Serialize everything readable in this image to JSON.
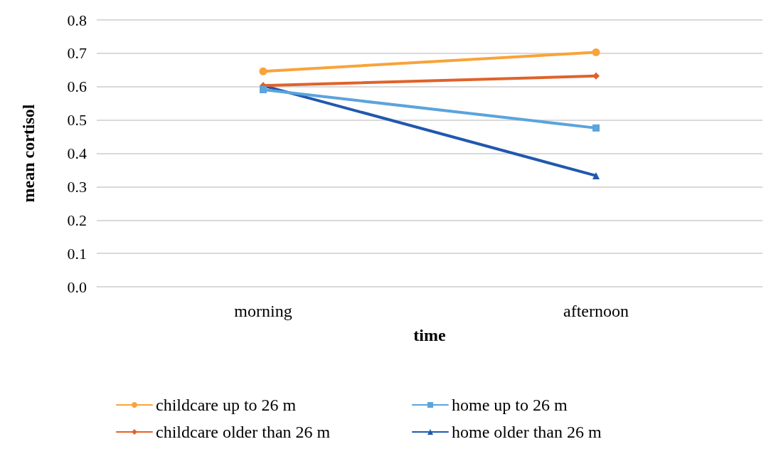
{
  "chart_data": {
    "type": "line",
    "xlabel": "time",
    "ylabel": "mean cortisol",
    "categories": [
      "morning",
      "afternoon"
    ],
    "ylim": [
      0,
      0.8
    ],
    "yticks": [
      {
        "value": 0,
        "label": "0.0"
      },
      0.1,
      0.2,
      0.3,
      0.4,
      0.5,
      0.6,
      0.7,
      0.8
    ],
    "grid": "y",
    "legend": "bottom",
    "series": [
      {
        "name": "childcare up to 26 m",
        "color": "#f9a33a",
        "marker": "circle",
        "values": [
          0.646,
          0.703
        ]
      },
      {
        "name": "home up to 26 m",
        "color": "#5ba4dc",
        "marker": "square",
        "values": [
          0.591,
          0.476
        ]
      },
      {
        "name": "childcare older than 26 m",
        "color": "#e0622a",
        "marker": "diamond",
        "values": [
          0.603,
          0.632
        ]
      },
      {
        "name": "home older than 26 m",
        "color": "#2158ae",
        "marker": "triangle",
        "values": [
          0.603,
          0.333
        ]
      }
    ]
  }
}
